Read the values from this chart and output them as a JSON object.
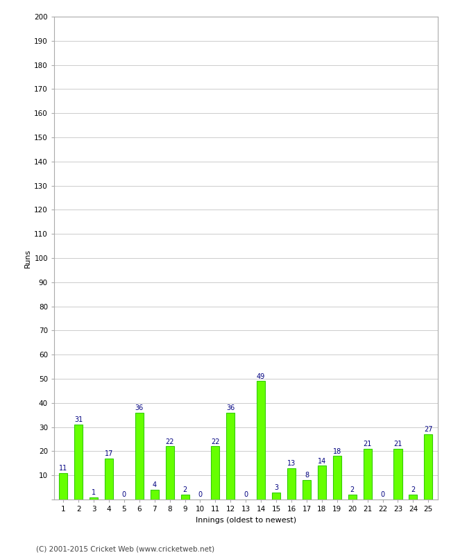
{
  "innings": [
    1,
    2,
    3,
    4,
    5,
    6,
    7,
    8,
    9,
    10,
    11,
    12,
    13,
    14,
    15,
    16,
    17,
    18,
    19,
    20,
    21,
    22,
    23,
    24,
    25
  ],
  "runs": [
    11,
    31,
    1,
    17,
    0,
    36,
    4,
    22,
    2,
    0,
    22,
    36,
    0,
    49,
    3,
    13,
    8,
    14,
    18,
    2,
    21,
    0,
    21,
    2,
    27
  ],
  "bar_color": "#66ff00",
  "bar_edge_color": "#33cc00",
  "label_color": "#000080",
  "ylabel": "Runs",
  "xlabel": "Innings (oldest to newest)",
  "ylim": [
    0,
    200
  ],
  "yticks": [
    0,
    10,
    20,
    30,
    40,
    50,
    60,
    70,
    80,
    90,
    100,
    110,
    120,
    130,
    140,
    150,
    160,
    170,
    180,
    190,
    200
  ],
  "bg_color": "#ffffff",
  "grid_color": "#cccccc",
  "spine_color": "#aaaaaa",
  "footer": "(C) 2001-2015 Cricket Web (www.cricketweb.net)",
  "bar_width": 0.55
}
